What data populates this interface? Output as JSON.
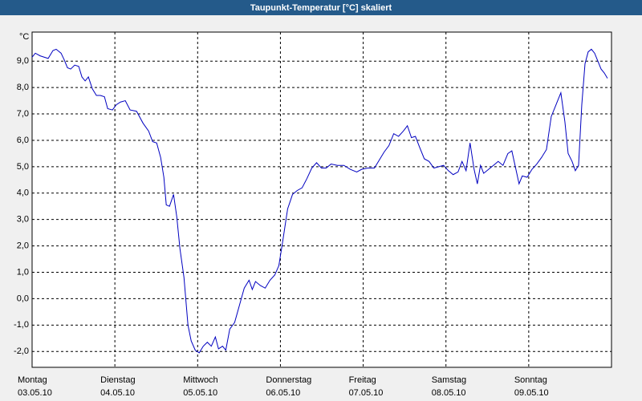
{
  "chart_data": {
    "type": "line",
    "title": "Taupunkt-Temperatur [°C] skaliert",
    "y_unit": "°C",
    "xlim": [
      0,
      7
    ],
    "ylim": [
      -2.6,
      10.1
    ],
    "xticks": [
      {
        "value": 0,
        "label": "Montag"
      },
      {
        "value": 1,
        "label": "Dienstag"
      },
      {
        "value": 2,
        "label": "Mittwoch"
      },
      {
        "value": 3,
        "label": "Donnerstag"
      },
      {
        "value": 4,
        "label": "Freitag"
      },
      {
        "value": 5,
        "label": "Samstag"
      },
      {
        "value": 6,
        "label": "Sonntag"
      }
    ],
    "xtick_dates": [
      "03.05.10",
      "04.05.10",
      "05.05.10",
      "06.05.10",
      "07.05.10",
      "08.05.10",
      "09.05.10"
    ],
    "yticks": [
      {
        "value": -2,
        "label": "-2,0"
      },
      {
        "value": -1,
        "label": "-1,0"
      },
      {
        "value": 0,
        "label": "0,0"
      },
      {
        "value": 1,
        "label": "1,0"
      },
      {
        "value": 2,
        "label": "2,0"
      },
      {
        "value": 3,
        "label": "3,0"
      },
      {
        "value": 4,
        "label": "4,0"
      },
      {
        "value": 5,
        "label": "5,0"
      },
      {
        "value": 6,
        "label": "6,0"
      },
      {
        "value": 7,
        "label": "7,0"
      },
      {
        "value": 8,
        "label": "8,0"
      },
      {
        "value": 9,
        "label": "9,0"
      }
    ],
    "grid": true,
    "color": "#0000c0",
    "x": [
      0,
      0.039,
      0.097,
      0.194,
      0.252,
      0.291,
      0.35,
      0.388,
      0.427,
      0.466,
      0.515,
      0.563,
      0.602,
      0.641,
      0.68,
      0.728,
      0.777,
      0.825,
      0.874,
      0.913,
      0.971,
      1.019,
      1.068,
      1.126,
      1.184,
      1.262,
      1.34,
      1.408,
      1.456,
      1.505,
      1.553,
      1.592,
      1.621,
      1.66,
      1.709,
      1.748,
      1.786,
      1.835,
      1.883,
      1.922,
      1.971,
      2.019,
      2.068,
      2.117,
      2.165,
      2.214,
      2.252,
      2.301,
      2.34,
      2.388,
      2.447,
      2.505,
      2.563,
      2.621,
      2.66,
      2.699,
      2.757,
      2.816,
      2.874,
      2.932,
      2.981,
      3.029,
      3.087,
      3.146,
      3.204,
      3.262,
      3.32,
      3.379,
      3.437,
      3.495,
      3.553,
      3.612,
      3.689,
      3.767,
      3.845,
      3.922,
      3.981,
      4.058,
      4.136,
      4.194,
      4.252,
      4.311,
      4.369,
      4.427,
      4.485,
      4.534,
      4.583,
      4.631,
      4.68,
      4.738,
      4.796,
      4.854,
      4.913,
      4.971,
      5.029,
      5.087,
      5.146,
      5.194,
      5.243,
      5.291,
      5.34,
      5.379,
      5.417,
      5.456,
      5.515,
      5.573,
      5.631,
      5.689,
      5.748,
      5.796,
      5.845,
      5.883,
      5.922,
      5.981,
      6.039,
      6.097,
      6.155,
      6.214,
      6.272,
      6.33,
      6.388,
      6.437,
      6.476,
      6.524,
      6.563,
      6.602,
      6.641,
      6.68,
      6.718,
      6.757,
      6.796,
      6.835,
      6.874,
      6.913,
      6.951
    ],
    "values": [
      9.15,
      9.3,
      9.2,
      9.1,
      9.4,
      9.45,
      9.3,
      9.05,
      8.75,
      8.7,
      8.85,
      8.8,
      8.4,
      8.25,
      8.4,
      7.95,
      7.7,
      7.7,
      7.65,
      7.2,
      7.15,
      7.35,
      7.45,
      7.5,
      7.15,
      7.1,
      6.65,
      6.35,
      5.95,
      5.9,
      5.35,
      4.6,
      3.55,
      3.5,
      3.95,
      3.1,
      1.9,
      0.8,
      -1.0,
      -1.6,
      -1.95,
      -2.05,
      -1.8,
      -1.65,
      -1.8,
      -1.45,
      -1.9,
      -1.8,
      -1.95,
      -1.15,
      -0.9,
      -0.25,
      0.4,
      0.7,
      0.35,
      0.65,
      0.5,
      0.4,
      0.7,
      0.9,
      1.25,
      2.2,
      3.4,
      3.95,
      4.1,
      4.2,
      4.55,
      4.95,
      5.15,
      4.95,
      4.95,
      5.1,
      5.05,
      5.05,
      4.9,
      4.8,
      4.9,
      4.95,
      4.95,
      5.25,
      5.55,
      5.8,
      6.25,
      6.15,
      6.35,
      6.55,
      6.1,
      6.15,
      5.75,
      5.3,
      5.2,
      4.95,
      5.0,
      5.05,
      4.85,
      4.7,
      4.8,
      5.2,
      4.85,
      5.9,
      4.9,
      4.35,
      5.05,
      4.75,
      4.9,
      5.05,
      5.2,
      5.05,
      5.5,
      5.6,
      4.9,
      4.35,
      4.65,
      4.6,
      4.9,
      5.1,
      5.35,
      5.65,
      6.9,
      7.35,
      7.8,
      6.7,
      5.5,
      5.2,
      4.85,
      5.05,
      7.35,
      8.9,
      9.35,
      9.45,
      9.3,
      9.0,
      8.7,
      8.55,
      8.35
    ]
  }
}
